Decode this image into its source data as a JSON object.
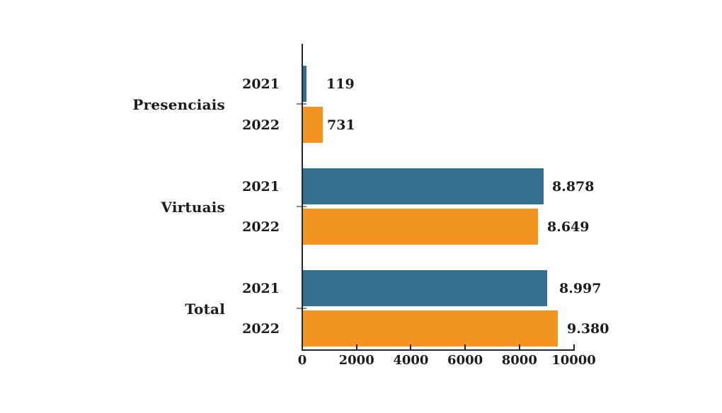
{
  "chart_data": {
    "type": "bar",
    "orientation": "horizontal",
    "title": "",
    "xlabel": "",
    "ylabel": "",
    "categories": [
      "Presenciais",
      "Virtuais",
      "Total"
    ],
    "series": [
      {
        "name": "2021",
        "color": "#36708F",
        "values": [
          119,
          8878,
          8997
        ],
        "value_labels": [
          "119",
          "8.878",
          "8.997"
        ]
      },
      {
        "name": "2022",
        "color": "#F2941F",
        "values": [
          731,
          8649,
          9380
        ],
        "value_labels": [
          "731",
          "8.649",
          "9.380"
        ]
      }
    ],
    "xlim": [
      0,
      10000
    ],
    "x_ticks": [
      0,
      2000,
      4000,
      6000,
      8000,
      10000
    ],
    "x_tick_labels": [
      "0",
      "2000",
      "4000",
      "6000",
      "8000",
      "10000"
    ],
    "grid": false,
    "legend": "none",
    "value_label_position": "outside-end",
    "colors": {
      "bar_2021": "#36708F",
      "bar_2022": "#F2941F",
      "axis": "#262626",
      "category_tick": "#8A8A8A",
      "text": "#1C1C1C",
      "background": "#FFFFFF"
    }
  }
}
